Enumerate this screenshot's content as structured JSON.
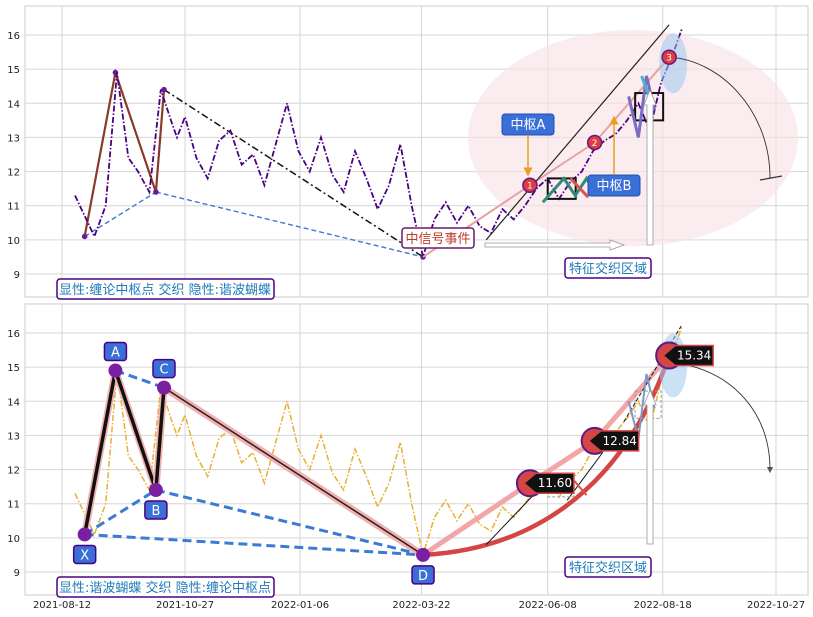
{
  "chart_data": [
    {
      "type": "line",
      "panel": "top",
      "title": "",
      "xlabel": "",
      "ylabel": "",
      "ylim": [
        8.4,
        16.8
      ],
      "yticks": [
        9,
        10,
        11,
        12,
        13,
        14,
        15,
        16
      ],
      "grid": true,
      "series": [
        {
          "style": "dash-dot",
          "color": "#4b0082",
          "x": [
            "2021-08-20",
            "2021-08-26",
            "2021-09-01",
            "2021-09-08",
            "2021-09-15",
            "2021-09-22",
            "2021-09-28",
            "2021-10-05",
            "2021-10-12",
            "2021-10-19",
            "2021-10-22",
            "2021-10-27",
            "2021-11-03",
            "2021-11-10",
            "2021-11-17",
            "2021-11-24",
            "2021-12-01",
            "2021-12-08",
            "2021-12-15",
            "2021-12-22",
            "2021-12-29",
            "2022-01-05",
            "2022-01-12",
            "2022-01-19",
            "2022-01-26",
            "2022-02-02",
            "2022-02-09",
            "2022-02-16",
            "2022-02-23",
            "2022-03-02",
            "2022-03-09",
            "2022-03-16",
            "2022-03-23",
            "2022-03-30",
            "2022-04-06",
            "2022-04-13",
            "2022-04-20",
            "2022-04-27",
            "2022-05-04",
            "2022-05-11",
            "2022-05-18",
            "2022-05-25",
            "2022-06-01",
            "2022-06-08",
            "2022-06-15",
            "2022-06-22",
            "2022-06-29",
            "2022-07-06",
            "2022-07-13",
            "2022-07-20",
            "2022-07-27",
            "2022-08-03",
            "2022-08-10",
            "2022-08-17",
            "2022-08-24",
            "2022-08-30"
          ],
          "values": [
            11.3,
            10.7,
            10.1,
            11.0,
            14.9,
            12.4,
            12.0,
            11.4,
            14.4,
            13.4,
            13.0,
            13.6,
            12.4,
            11.8,
            12.9,
            13.2,
            12.2,
            12.5,
            11.6,
            12.8,
            14.0,
            12.6,
            12.0,
            13.0,
            11.9,
            11.4,
            12.6,
            11.8,
            10.9,
            11.6,
            12.8,
            11.0,
            9.5,
            10.6,
            11.1,
            10.5,
            11.0,
            10.4,
            10.2,
            10.9,
            10.6,
            11.0,
            11.5,
            11.8,
            11.2,
            11.7,
            12.0,
            12.6,
            12.9,
            13.1,
            13.5,
            14.0,
            13.2,
            14.6,
            15.4,
            16.2
          ]
        }
      ],
      "zigzag": {
        "x": [
          "2021-08-26",
          "2021-09-14",
          "2021-10-09",
          "2021-10-14",
          "2022-03-23"
        ],
        "values": [
          10.1,
          14.9,
          11.4,
          14.4,
          9.5
        ]
      },
      "markers": [
        {
          "label": "1",
          "x": "2022-05-28",
          "y": 11.6
        },
        {
          "label": "2",
          "x": "2022-07-07",
          "y": 12.85
        },
        {
          "label": "3",
          "x": "2022-08-22",
          "y": 15.35
        }
      ],
      "annotations": {
        "zhongshu_a": "中枢A",
        "zhongshu_b": "中枢B",
        "event": "中信号事件",
        "region": "特征交织区域",
        "legend": "显性:缠论中枢点 交织 隐性:谐波蝴蝶"
      }
    },
    {
      "type": "line",
      "panel": "bottom",
      "title": "",
      "xlabel": "",
      "ylabel": "",
      "ylim": [
        8.4,
        16.8
      ],
      "yticks": [
        9,
        10,
        11,
        12,
        13,
        14,
        15,
        16
      ],
      "grid": true,
      "series": [
        {
          "style": "dash-dot",
          "color": "#e8b030",
          "x": [
            "2021-08-20",
            "2021-08-26",
            "2021-09-01",
            "2021-09-08",
            "2021-09-15",
            "2021-09-22",
            "2021-09-28",
            "2021-10-05",
            "2021-10-12",
            "2021-10-19",
            "2021-10-22",
            "2021-10-27",
            "2021-11-03",
            "2021-11-10",
            "2021-11-17",
            "2021-11-24",
            "2021-12-01",
            "2021-12-08",
            "2021-12-15",
            "2021-12-22",
            "2021-12-29",
            "2022-01-05",
            "2022-01-12",
            "2022-01-19",
            "2022-01-26",
            "2022-02-02",
            "2022-02-09",
            "2022-02-16",
            "2022-02-23",
            "2022-03-02",
            "2022-03-09",
            "2022-03-16",
            "2022-03-23",
            "2022-03-30",
            "2022-04-06",
            "2022-04-13",
            "2022-04-20",
            "2022-04-27",
            "2022-05-04",
            "2022-05-11",
            "2022-05-18",
            "2022-05-25",
            "2022-06-01",
            "2022-06-08",
            "2022-06-15",
            "2022-06-22",
            "2022-06-29",
            "2022-07-06",
            "2022-07-13",
            "2022-07-20",
            "2022-07-27",
            "2022-08-03",
            "2022-08-10",
            "2022-08-17",
            "2022-08-24",
            "2022-08-30"
          ],
          "values": [
            11.3,
            10.7,
            10.1,
            11.0,
            14.9,
            12.4,
            12.0,
            11.4,
            14.4,
            13.4,
            13.0,
            13.6,
            12.4,
            11.8,
            12.9,
            13.2,
            12.2,
            12.5,
            11.6,
            12.8,
            14.0,
            12.6,
            12.0,
            13.0,
            11.9,
            11.4,
            12.6,
            11.8,
            10.9,
            11.6,
            12.8,
            11.0,
            9.5,
            10.6,
            11.1,
            10.5,
            11.0,
            10.4,
            10.2,
            10.9,
            10.6,
            11.0,
            11.5,
            11.8,
            11.2,
            11.7,
            12.0,
            12.6,
            12.9,
            13.1,
            13.5,
            14.0,
            13.2,
            14.6,
            15.4,
            16.2
          ]
        }
      ],
      "points": [
        {
          "label": "X",
          "x": "2021-08-26",
          "y": 10.1
        },
        {
          "label": "A",
          "x": "2021-09-14",
          "y": 14.9
        },
        {
          "label": "B",
          "x": "2021-10-09",
          "y": 11.4
        },
        {
          "label": "C",
          "x": "2021-10-14",
          "y": 14.4
        },
        {
          "label": "D",
          "x": "2022-03-23",
          "y": 9.5
        }
      ],
      "price_markers": [
        {
          "label": "11.60",
          "x": "2022-05-28",
          "y": 11.6
        },
        {
          "label": "12.84",
          "x": "2022-07-07",
          "y": 12.84
        },
        {
          "label": "15.34",
          "x": "2022-08-22",
          "y": 15.34
        }
      ],
      "annotations": {
        "region": "特征交织区域",
        "legend": "显性:谐波蝴蝶 交织 隐性:缠论中枢点"
      },
      "x_ticks": [
        "2021-08-12",
        "2021-10-27",
        "2022-01-06",
        "2022-03-22",
        "2022-06-08",
        "2022-08-18",
        "2022-10-27"
      ]
    }
  ]
}
